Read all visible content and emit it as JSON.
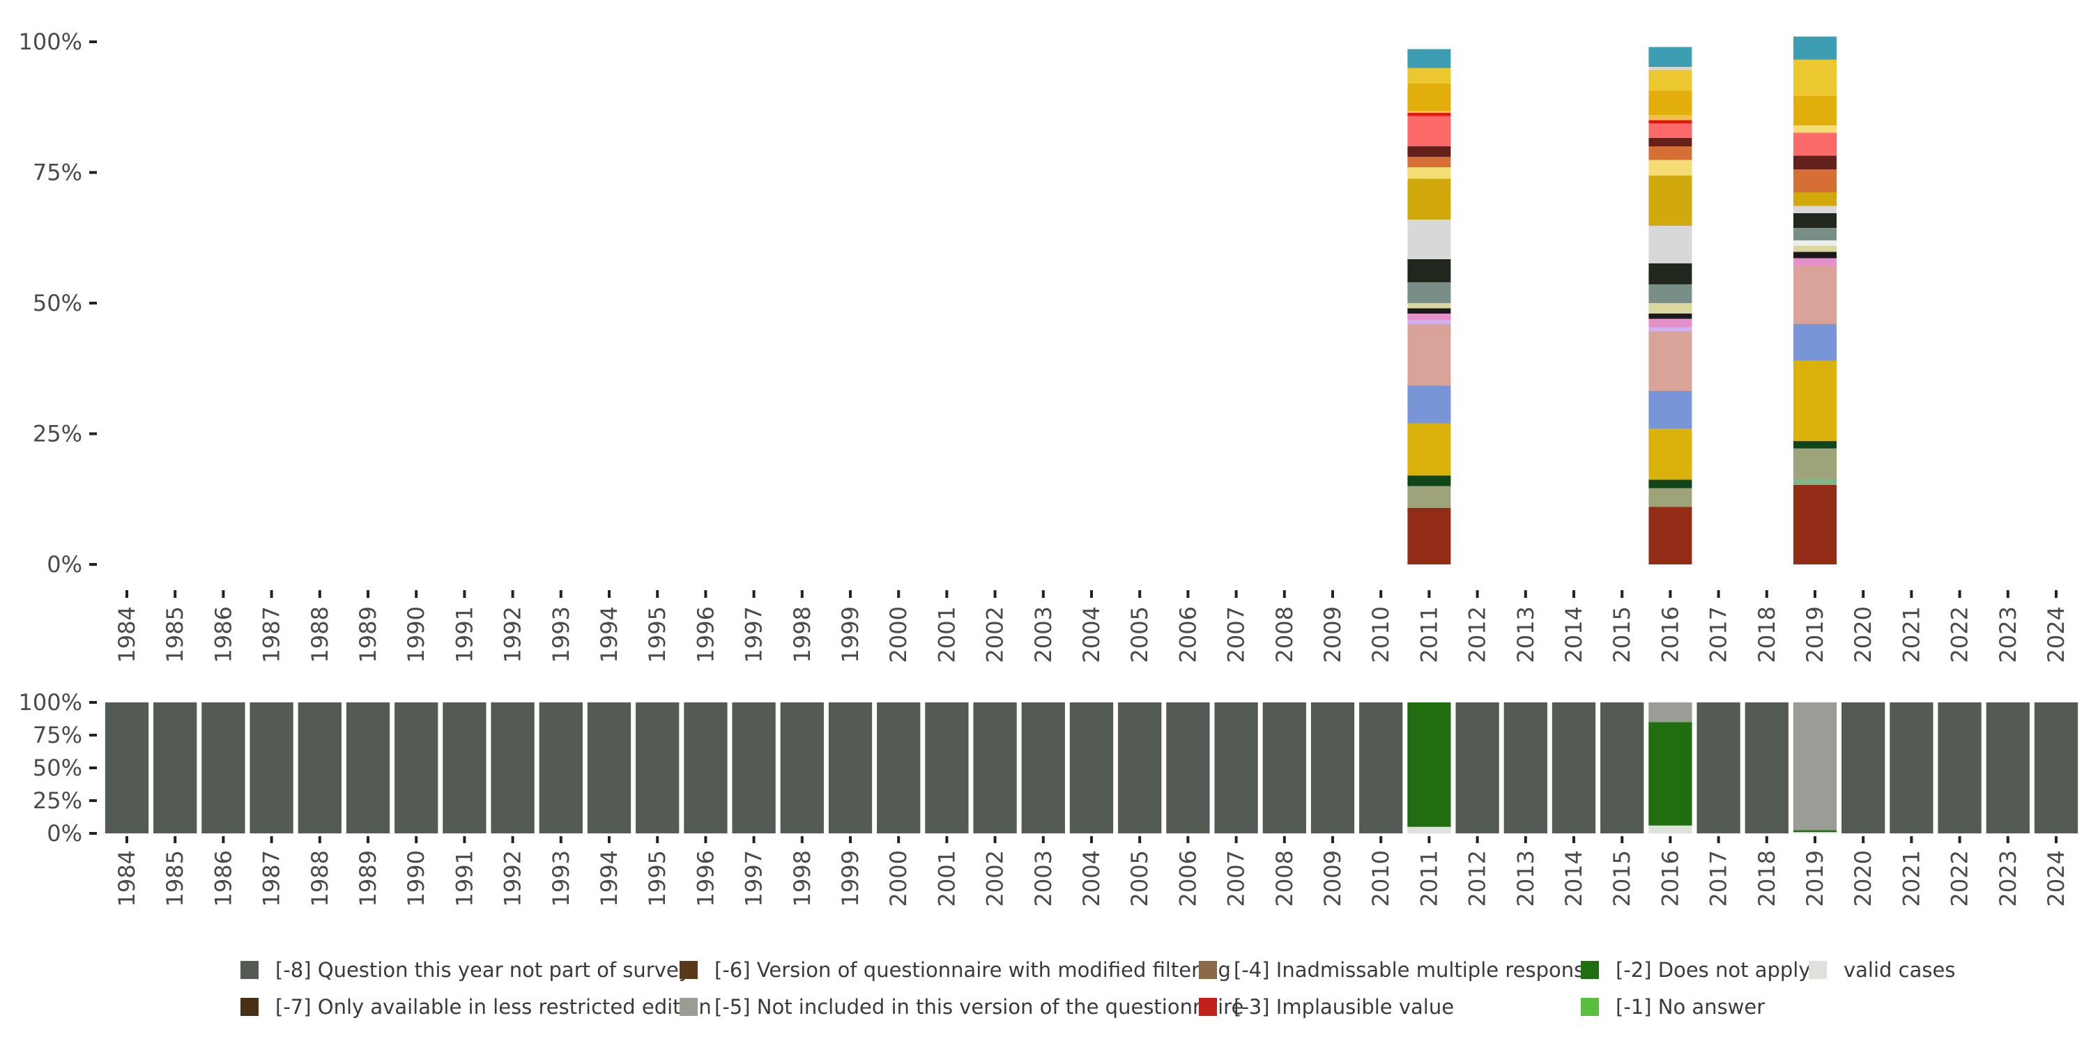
{
  "chart_data": [
    {
      "type": "bar",
      "stacked": true,
      "description_role": "valid-case answer distribution (stacked shares)",
      "categories": [
        "1984",
        "1985",
        "1986",
        "1987",
        "1988",
        "1989",
        "1990",
        "1991",
        "1992",
        "1993",
        "1994",
        "1995",
        "1996",
        "1997",
        "1998",
        "1999",
        "2000",
        "2001",
        "2002",
        "2003",
        "2004",
        "2005",
        "2006",
        "2007",
        "2008",
        "2009",
        "2010",
        "2011",
        "2012",
        "2013",
        "2014",
        "2015",
        "2016",
        "2017",
        "2018",
        "2019",
        "2020",
        "2021",
        "2022",
        "2023",
        "2024"
      ],
      "ylim": [
        0,
        100
      ],
      "yticks": [
        "0%",
        "25%",
        "50%",
        "75%",
        "100%"
      ],
      "title": "",
      "xlabel": "",
      "ylabel": "",
      "bars": [
        {
          "year": "2011",
          "segments": [
            {
              "value": 10.8,
              "color": "#942d17"
            },
            {
              "value": 4.2,
              "color": "#9ea37a"
            },
            {
              "value": 2.0,
              "color": "#0f4518"
            },
            {
              "value": 10.0,
              "color": "#dbb20b"
            },
            {
              "value": 7.2,
              "color": "#7896d7"
            },
            {
              "value": 11.8,
              "color": "#d9a399"
            },
            {
              "value": 0.8,
              "color": "#cfb3f0"
            },
            {
              "value": 1.2,
              "color": "#e590c8"
            },
            {
              "value": 1.0,
              "color": "#1a1a1a"
            },
            {
              "value": 1.0,
              "color": "#dcd6a1"
            },
            {
              "value": 4.0,
              "color": "#788e86"
            },
            {
              "value": 4.4,
              "color": "#22271e"
            },
            {
              "value": 7.6,
              "color": "#d8d8d8"
            },
            {
              "value": 7.8,
              "color": "#d1a90c"
            },
            {
              "value": 2.2,
              "color": "#f3dd74"
            },
            {
              "value": 2.0,
              "color": "#d66f36"
            },
            {
              "value": 2.0,
              "color": "#64201b"
            },
            {
              "value": 5.8,
              "color": "#fc6a6a"
            },
            {
              "value": 0.6,
              "color": "#e4180e"
            },
            {
              "value": 0.4,
              "color": "#f1c14e"
            },
            {
              "value": 5.2,
              "color": "#e2ae0c"
            },
            {
              "value": 3.0,
              "color": "#ebc82f"
            },
            {
              "value": 3.6,
              "color": "#3d9db3"
            }
          ]
        },
        {
          "year": "2016",
          "segments": [
            {
              "value": 11.0,
              "color": "#942d17"
            },
            {
              "value": 3.6,
              "color": "#9ea37a"
            },
            {
              "value": 1.6,
              "color": "#0f4518"
            },
            {
              "value": 9.8,
              "color": "#dbb20b"
            },
            {
              "value": 7.2,
              "color": "#7896d7"
            },
            {
              "value": 11.4,
              "color": "#d9a399"
            },
            {
              "value": 0.8,
              "color": "#cfb3f0"
            },
            {
              "value": 1.6,
              "color": "#e590c8"
            },
            {
              "value": 1.0,
              "color": "#1a1a1a"
            },
            {
              "value": 2.0,
              "color": "#dcd6a1"
            },
            {
              "value": 3.6,
              "color": "#788e86"
            },
            {
              "value": 4.0,
              "color": "#22271e"
            },
            {
              "value": 7.2,
              "color": "#d8d8d8"
            },
            {
              "value": 9.6,
              "color": "#d1a90c"
            },
            {
              "value": 3.0,
              "color": "#f3dd74"
            },
            {
              "value": 2.6,
              "color": "#d66f36"
            },
            {
              "value": 1.6,
              "color": "#64201b"
            },
            {
              "value": 2.8,
              "color": "#fc6a6a"
            },
            {
              "value": 0.6,
              "color": "#e4180e"
            },
            {
              "value": 1.0,
              "color": "#f1c14e"
            },
            {
              "value": 4.6,
              "color": "#e2ae0c"
            },
            {
              "value": 4.0,
              "color": "#ebc82f"
            },
            {
              "value": 0.6,
              "color": "#d8d8d8"
            },
            {
              "value": 3.8,
              "color": "#3d9db3"
            }
          ]
        },
        {
          "year": "2019",
          "segments": [
            {
              "value": 15.2,
              "color": "#942d17"
            },
            {
              "value": 1.2,
              "color": "#7fb68b"
            },
            {
              "value": 5.8,
              "color": "#9ea37a"
            },
            {
              "value": 1.4,
              "color": "#0f4518"
            },
            {
              "value": 15.4,
              "color": "#dbb20b"
            },
            {
              "value": 7.0,
              "color": "#7896d7"
            },
            {
              "value": 11.2,
              "color": "#d9a399"
            },
            {
              "value": 1.4,
              "color": "#e590c8"
            },
            {
              "value": 1.2,
              "color": "#1a1a1a"
            },
            {
              "value": 1.2,
              "color": "#dcd6a1"
            },
            {
              "value": 1.0,
              "color": "#eeeeee"
            },
            {
              "value": 2.4,
              "color": "#788e86"
            },
            {
              "value": 2.8,
              "color": "#22271e"
            },
            {
              "value": 1.4,
              "color": "#d8d8d8"
            },
            {
              "value": 2.6,
              "color": "#d1a90c"
            },
            {
              "value": 4.4,
              "color": "#d66f36"
            },
            {
              "value": 2.6,
              "color": "#64201b"
            },
            {
              "value": 4.4,
              "color": "#fc6a6a"
            },
            {
              "value": 1.4,
              "color": "#f3dd74"
            },
            {
              "value": 5.6,
              "color": "#e2ae0c"
            },
            {
              "value": 7.0,
              "color": "#ebc82f"
            },
            {
              "value": 4.4,
              "color": "#3d9db3"
            }
          ]
        }
      ]
    },
    {
      "type": "bar",
      "stacked": true,
      "description_role": "missing-value code distribution (stacked shares)",
      "categories": [
        "1984",
        "1985",
        "1986",
        "1987",
        "1988",
        "1989",
        "1990",
        "1991",
        "1992",
        "1993",
        "1994",
        "1995",
        "1996",
        "1997",
        "1998",
        "1999",
        "2000",
        "2001",
        "2002",
        "2003",
        "2004",
        "2005",
        "2006",
        "2007",
        "2008",
        "2009",
        "2010",
        "2011",
        "2012",
        "2013",
        "2014",
        "2015",
        "2016",
        "2017",
        "2018",
        "2019",
        "2020",
        "2021",
        "2022",
        "2023",
        "2024"
      ],
      "ylim": [
        0,
        100
      ],
      "yticks": [
        "0%",
        "25%",
        "50%",
        "75%",
        "100%"
      ],
      "default_segments": [
        {
          "code": "[-8]",
          "value": 100
        }
      ],
      "overrides": {
        "2011": [
          {
            "code": "valid",
            "value": 5
          },
          {
            "code": "[-2]",
            "value": 95
          }
        ],
        "2016": [
          {
            "code": "valid",
            "value": 6
          },
          {
            "code": "[-2]",
            "value": 79
          },
          {
            "code": "[-5]",
            "value": 15
          }
        ],
        "2019": [
          {
            "code": "valid",
            "value": 1
          },
          {
            "code": "[-2]",
            "value": 1.5
          },
          {
            "code": "[-5]",
            "value": 97.5
          }
        ]
      },
      "codes": {
        "[-8]": "#545b55",
        "[-7]": "#4a2f17",
        "[-6]": "#5a391a",
        "[-5]": "#9a9d96",
        "[-4]": "#8a6b45",
        "[-3]": "#c0201a",
        "[-2]": "#216e11",
        "[-1]": "#5abf3f",
        "valid": "#dfe1dc"
      }
    }
  ],
  "legend": {
    "items": [
      {
        "code": "[-8]",
        "label": "[-8] Question this year not part of survey",
        "color": "#545b55"
      },
      {
        "code": "[-7]",
        "label": "[-7] Only available in less restricted edition",
        "color": "#4a2f17"
      },
      {
        "code": "[-6]",
        "label": "[-6] Version of questionnaire with modified filtering",
        "color": "#5a391a"
      },
      {
        "code": "[-5]",
        "label": "[-5] Not included in this version of the questionnaire",
        "color": "#9a9d96"
      },
      {
        "code": "[-4]",
        "label": "[-4] Inadmissable multiple response",
        "color": "#8a6b45"
      },
      {
        "code": "[-3]",
        "label": "[-3] Implausible value",
        "color": "#c0201a"
      },
      {
        "code": "[-2]",
        "label": "[-2] Does not apply",
        "color": "#216e11"
      },
      {
        "code": "[-1]",
        "label": "[-1] No answer",
        "color": "#5abf3f"
      },
      {
        "code": "valid",
        "label": "valid cases",
        "color": "#dfe1dc"
      }
    ]
  },
  "colors": {
    "axis_text": "#4a4a4a",
    "tick": "#222222",
    "background": "#ffffff"
  }
}
